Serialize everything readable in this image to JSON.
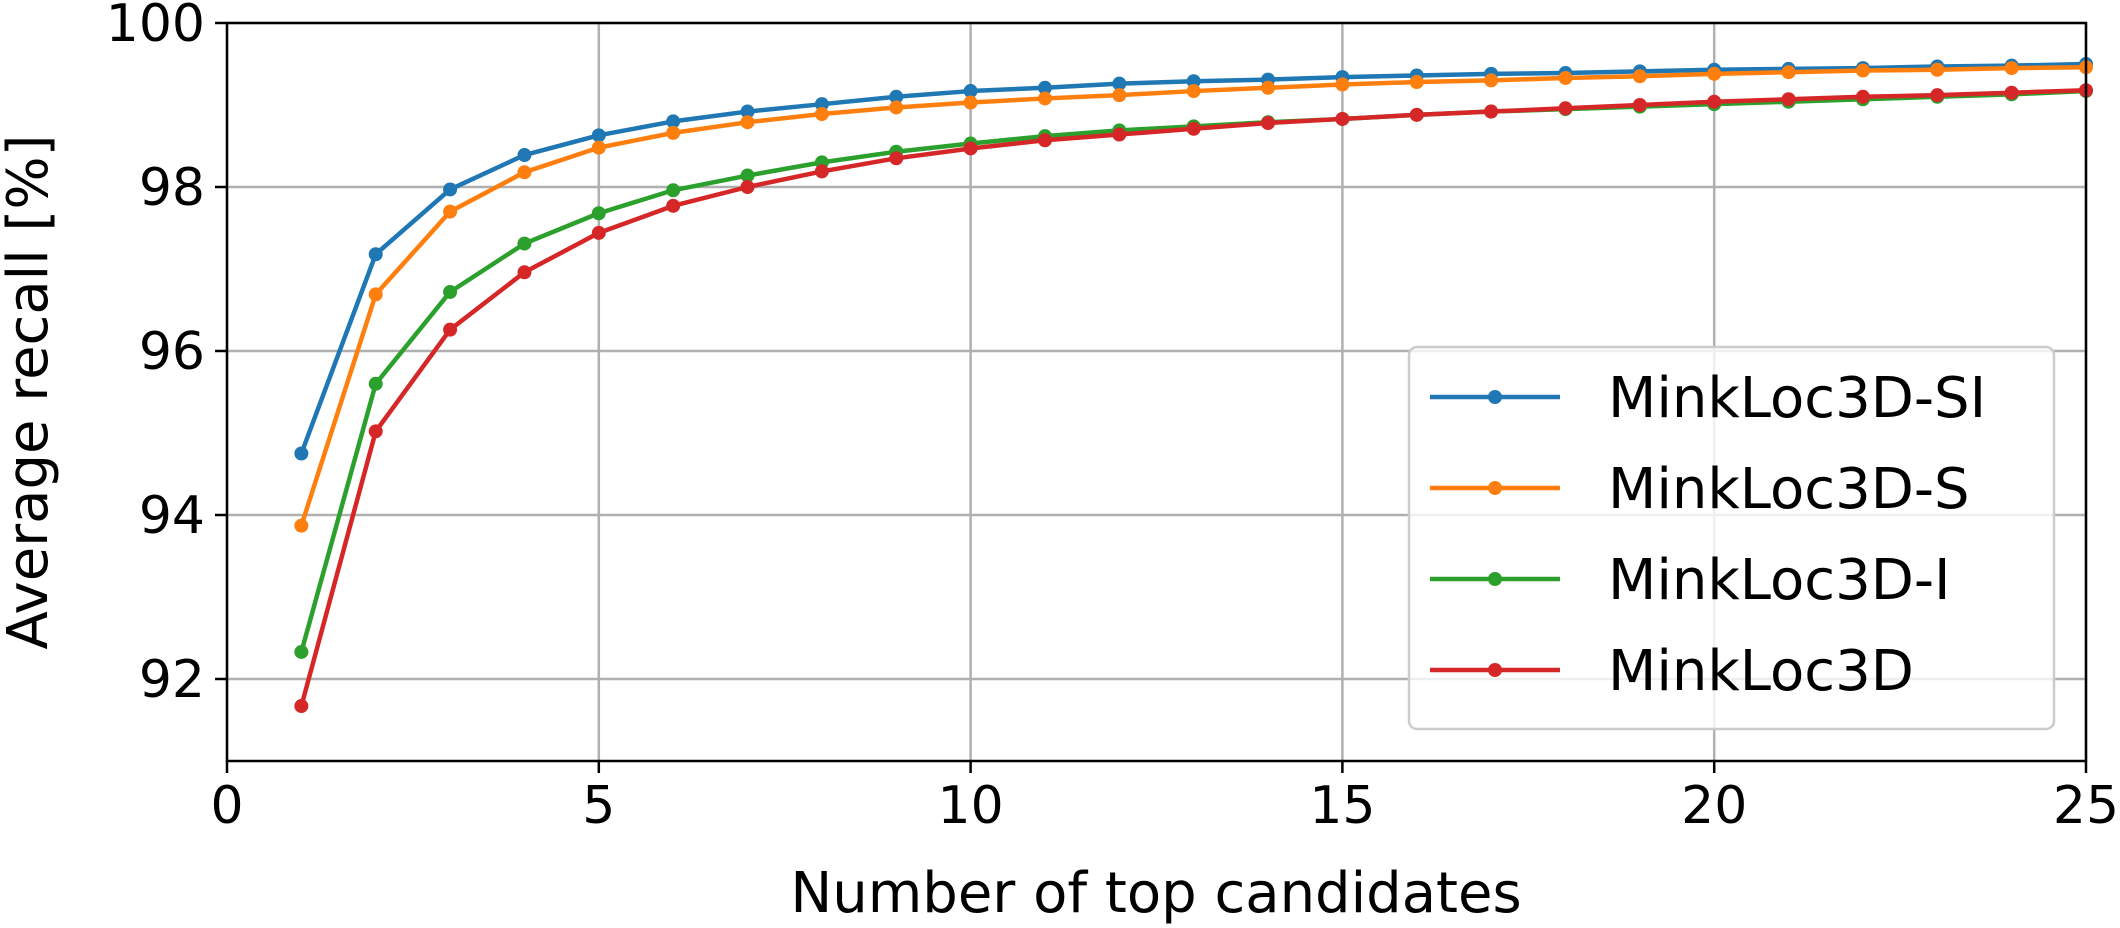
{
  "chart_data": {
    "type": "line",
    "xlabel": "Number of top candidates",
    "ylabel": "Average recall [%]",
    "xlim": [
      0,
      25
    ],
    "ylim": [
      91,
      100
    ],
    "xticks": [
      0,
      5,
      10,
      15,
      20,
      25
    ],
    "yticks": [
      92,
      94,
      96,
      98,
      100
    ],
    "grid": true,
    "legend_position": "lower-right",
    "x": [
      1,
      2,
      3,
      4,
      5,
      6,
      7,
      8,
      9,
      10,
      11,
      12,
      13,
      14,
      15,
      16,
      17,
      18,
      19,
      20,
      21,
      22,
      23,
      24,
      25
    ],
    "series": [
      {
        "name": "MinkLoc3D-SI",
        "color": "#1f77b4",
        "values": [
          94.75,
          97.18,
          97.97,
          98.39,
          98.63,
          98.8,
          98.92,
          99.01,
          99.1,
          99.17,
          99.21,
          99.26,
          99.29,
          99.31,
          99.34,
          99.36,
          99.38,
          99.39,
          99.41,
          99.43,
          99.44,
          99.45,
          99.47,
          99.48,
          99.5
        ]
      },
      {
        "name": "MinkLoc3D-S",
        "color": "#ff7f0e",
        "values": [
          93.87,
          96.69,
          97.7,
          98.18,
          98.48,
          98.66,
          98.79,
          98.89,
          98.97,
          99.03,
          99.08,
          99.12,
          99.17,
          99.21,
          99.25,
          99.28,
          99.3,
          99.33,
          99.35,
          99.38,
          99.4,
          99.42,
          99.43,
          99.45,
          99.46
        ]
      },
      {
        "name": "MinkLoc3D-I",
        "color": "#2ca02c",
        "values": [
          92.33,
          95.6,
          96.72,
          97.31,
          97.68,
          97.96,
          98.14,
          98.3,
          98.43,
          98.53,
          98.62,
          98.69,
          98.74,
          98.79,
          98.83,
          98.88,
          98.92,
          98.95,
          98.98,
          99.01,
          99.04,
          99.07,
          99.1,
          99.13,
          99.17
        ]
      },
      {
        "name": "MinkLoc3D",
        "color": "#d62728",
        "values": [
          91.67,
          95.02,
          96.26,
          96.96,
          97.44,
          97.77,
          98.0,
          98.19,
          98.35,
          98.47,
          98.57,
          98.64,
          98.71,
          98.78,
          98.83,
          98.88,
          98.92,
          98.96,
          99.0,
          99.04,
          99.07,
          99.1,
          99.12,
          99.15,
          99.18
        ]
      }
    ]
  }
}
